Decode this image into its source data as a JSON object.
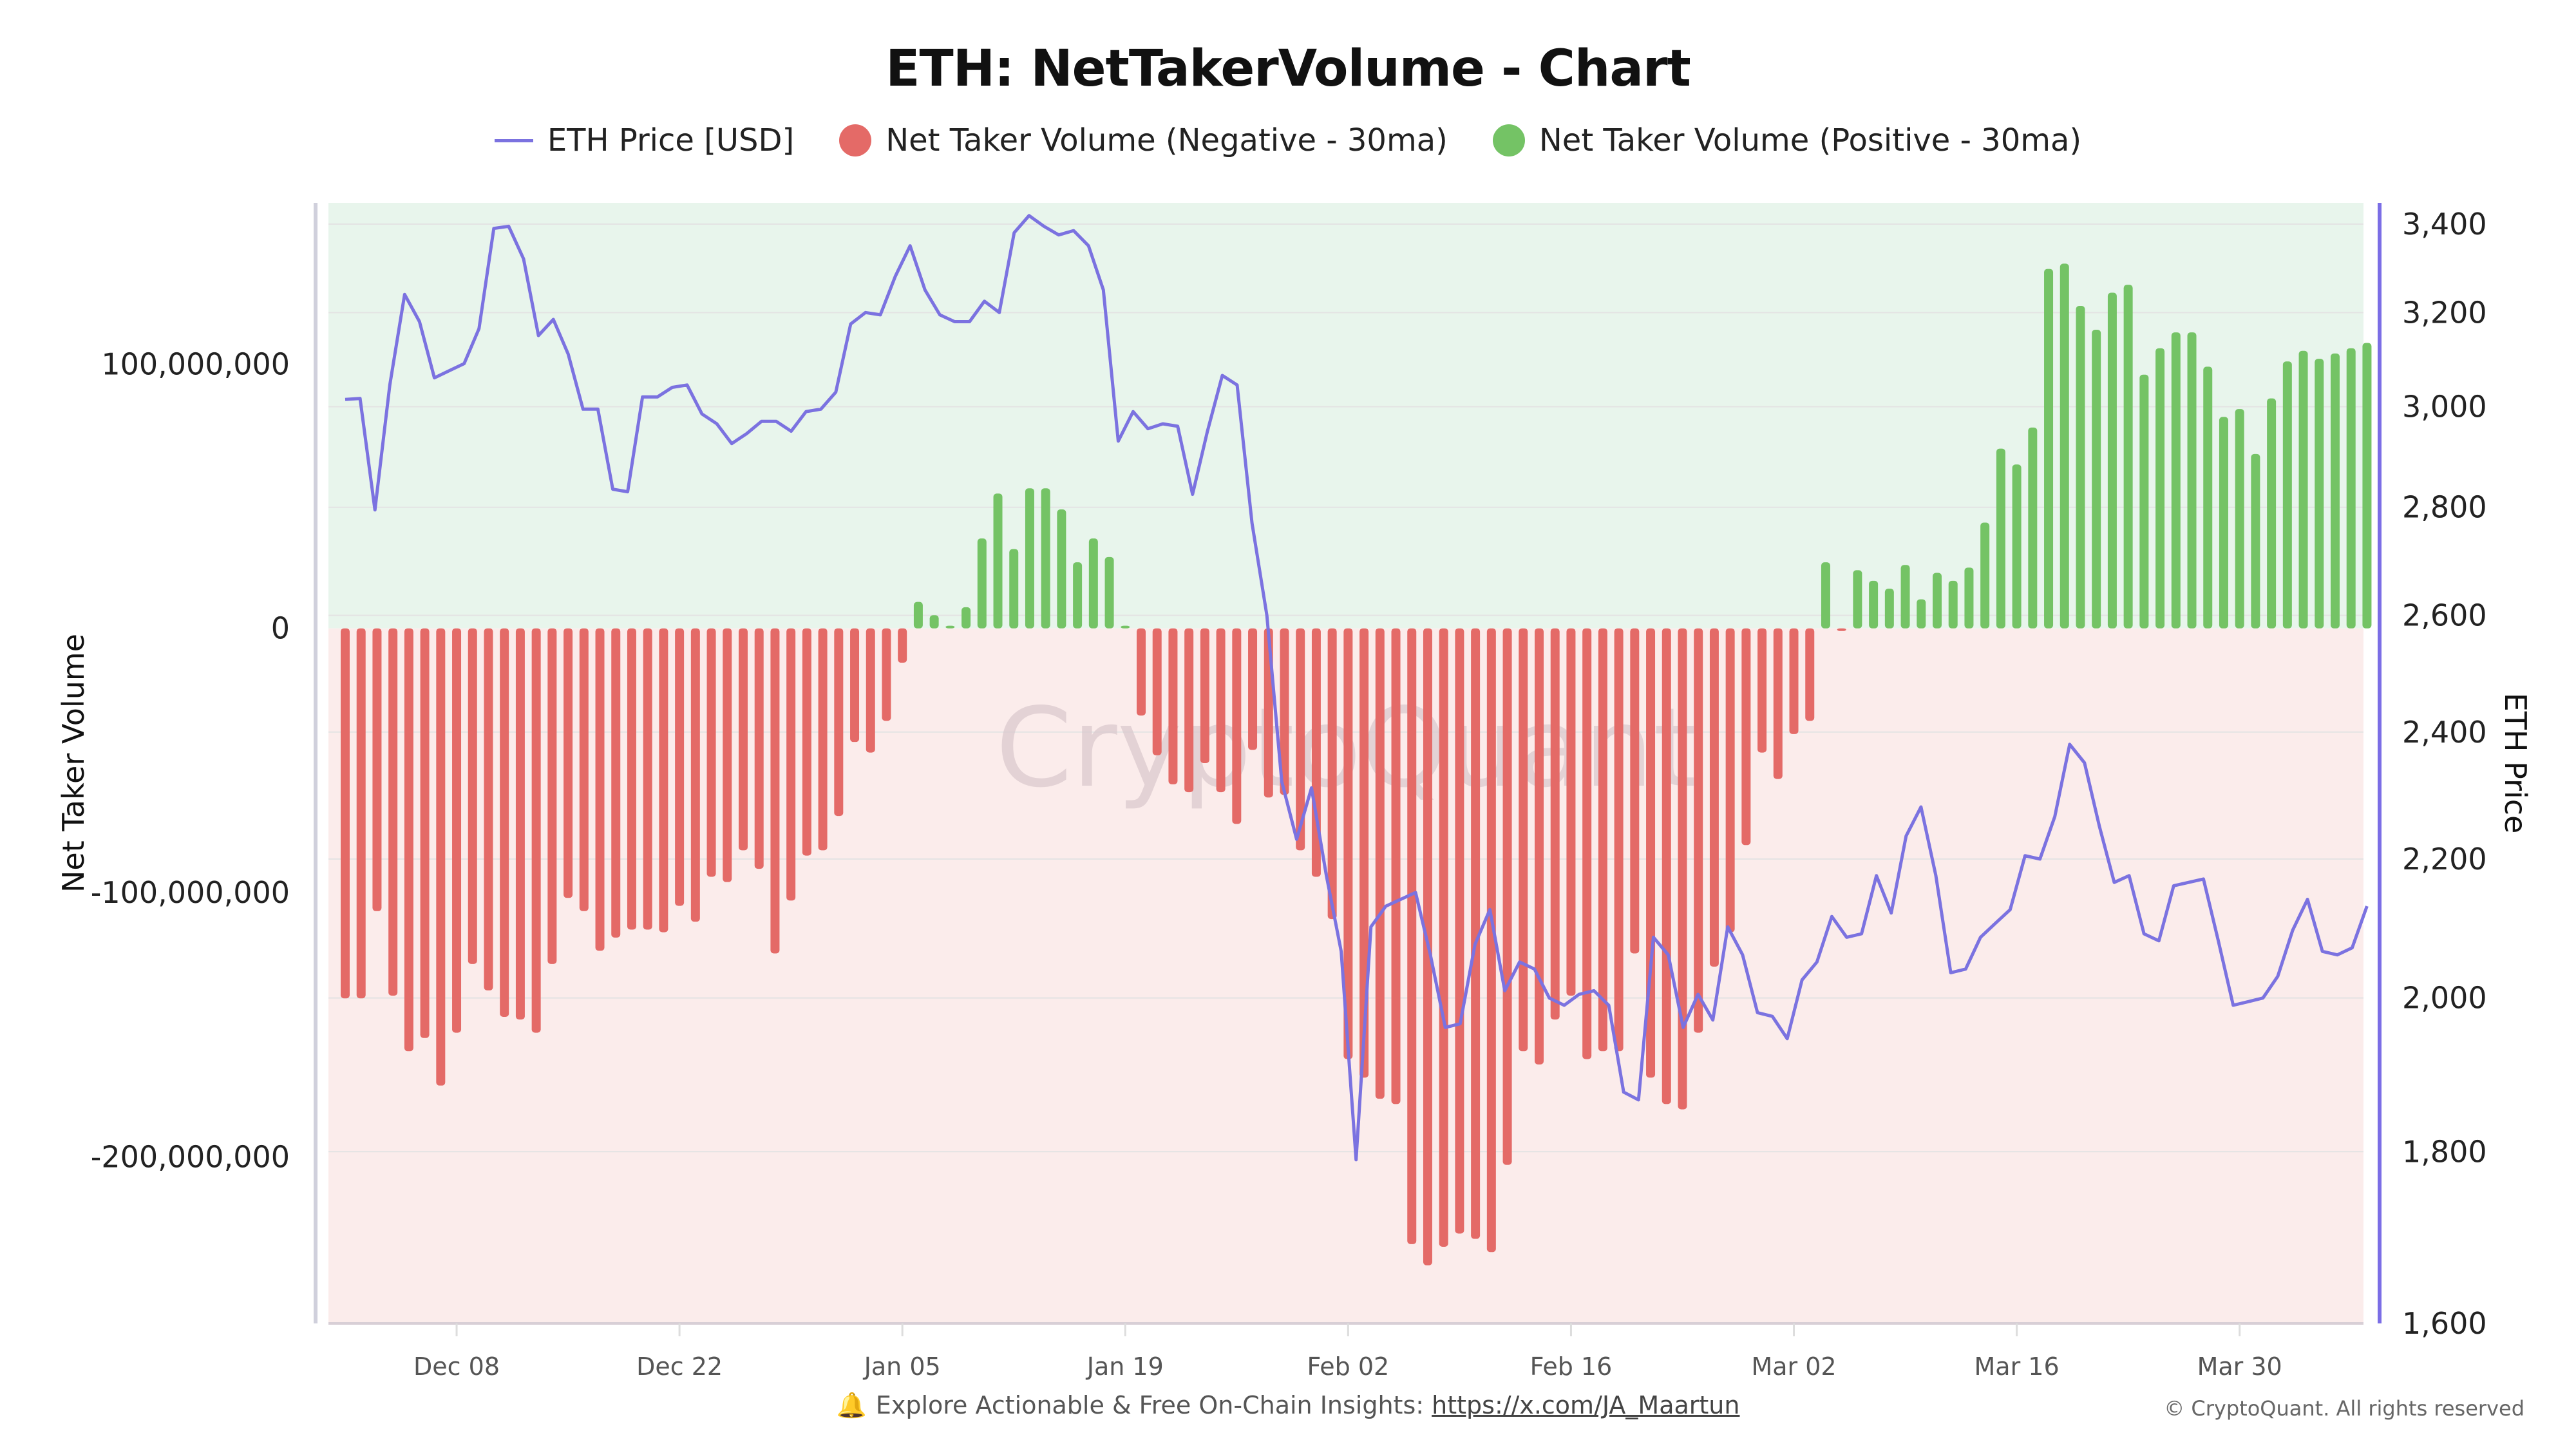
{
  "page": {
    "footer_prefix": "Explore Actionable & Free On-Chain Insights: ",
    "footer_link": "https://x.com/JA_Maartun",
    "copyright": "© CryptoQuant. All rights reserved",
    "watermark": "CryptoQuant",
    "bell_icon": "🔔"
  },
  "chart_data": {
    "type": "bar+line",
    "title": "ETH: NetTakerVolume - Chart",
    "legend": [
      {
        "name": "ETH Price [USD]",
        "kind": "line",
        "color": "#7b72e0"
      },
      {
        "name": "Net Taker Volume (Negative - 30ma)",
        "kind": "dot",
        "color": "#e46a67"
      },
      {
        "name": "Net Taker Volume (Positive - 30ma)",
        "kind": "dot",
        "color": "#74c365"
      }
    ],
    "legend_position": "top-center",
    "ylabel_left": "Net Taker Volume",
    "ylabel_right": "ETH Price",
    "y_left_ticks": [
      "100,000,000",
      "0",
      "-100,000,000",
      "-200,000,000"
    ],
    "y_left_tick_values": [
      100000000,
      0,
      -100000000,
      -200000000
    ],
    "y_left_range": [
      -263000000,
      161000000
    ],
    "y_right_ticks": [
      "3,400",
      "3,200",
      "3,000",
      "2,800",
      "2,600",
      "2,400",
      "2,200",
      "2,000",
      "1,800",
      "1,600"
    ],
    "y_right_tick_values": [
      3400,
      3200,
      3000,
      2800,
      2600,
      2400,
      2200,
      2000,
      1800,
      1600
    ],
    "y_right_scale": "log",
    "y_right_range": [
      1600,
      3450
    ],
    "x_ticks": [
      "Dec 08",
      "Dec 22",
      "Jan 05",
      "Jan 19",
      "Feb 02",
      "Feb 16",
      "Mar 02",
      "Mar 16",
      "Mar 30"
    ],
    "x_tick_day_index": [
      7,
      21,
      35,
      49,
      63,
      77,
      91,
      105,
      119
    ],
    "x_start": "Dec 01",
    "background_positive_color": "#e8f5ec",
    "background_negative_color": "#fbeceb",
    "grid": true,
    "net_taker_volume_millions": [
      -140,
      -140,
      -107,
      -139,
      -160,
      -155,
      -173,
      -153,
      -127,
      -137,
      -147,
      -148,
      -153,
      -127,
      -102,
      -107,
      -122,
      -117,
      -114,
      -114,
      -115,
      -105,
      -111,
      -94,
      -96,
      -84,
      -91,
      -123,
      -103,
      -86,
      -84,
      -71,
      -43,
      -47,
      -35,
      -13,
      10,
      5,
      1,
      8,
      34,
      51,
      30,
      53,
      53,
      45,
      25,
      34,
      27,
      1,
      -33,
      -48,
      -59,
      -62,
      -51,
      -62,
      -74,
      -46,
      -64,
      -63,
      -84,
      -94,
      -110,
      -163,
      -170,
      -178,
      -180,
      -233,
      -241,
      -234,
      -229,
      -231,
      -236,
      -203,
      -160,
      -165,
      -148,
      -139,
      -163,
      -160,
      -160,
      -123,
      -170,
      -180,
      -182,
      -153,
      -128,
      -115,
      -82,
      -47,
      -57,
      -40,
      -35,
      25,
      -1,
      22,
      18,
      15,
      24,
      11,
      21,
      18,
      23,
      40,
      68,
      62,
      76,
      136,
      138,
      122,
      113,
      127,
      130,
      96,
      106,
      112,
      112,
      99,
      80,
      83,
      66,
      87,
      101,
      105,
      102,
      104,
      106,
      108
    ],
    "eth_price_usd": [
      3015,
      3017,
      2795,
      3045,
      3240,
      3180,
      3060,
      3075,
      3090,
      3165,
      3390,
      3395,
      3320,
      3150,
      3185,
      3110,
      2995,
      2995,
      2835,
      2830,
      3020,
      3020,
      3040,
      3045,
      2985,
      2965,
      2925,
      2945,
      2970,
      2970,
      2950,
      2990,
      2995,
      3030,
      3175,
      3200,
      3195,
      3280,
      3350,
      3250,
      3195,
      3180,
      3180,
      3225,
      3200,
      3380,
      3420,
      3395,
      3375,
      3385,
      3350,
      3250,
      2930,
      2990,
      2955,
      2965,
      2960,
      2825,
      2950,
      3065,
      3045,
      2770,
      2600,
      2320,
      2230,
      2310,
      2175,
      2065,
      1790,
      2100,
      2130,
      2140,
      2150,
      2060,
      1960,
      1965,
      2075,
      2125,
      2010,
      2050,
      2040,
      2000,
      1990,
      2005,
      2010,
      1990,
      1875,
      1865,
      2085,
      2060,
      1960,
      2005,
      1970,
      2100,
      2060,
      1980,
      1975,
      1945,
      2025,
      2050,
      2115,
      2085,
      2090,
      2175,
      2120,
      2235,
      2280,
      2175,
      2035,
      2040,
      2085,
      2105,
      2125,
      2205,
      2200,
      2265,
      2380,
      2350,
      2250,
      2165,
      2175,
      2090,
      2080,
      2160,
      2165,
      2170,
      2080,
      1990,
      1995,
      2000,
      2030,
      2095,
      2140,
      2065,
      2060,
      2070,
      2130
    ]
  }
}
